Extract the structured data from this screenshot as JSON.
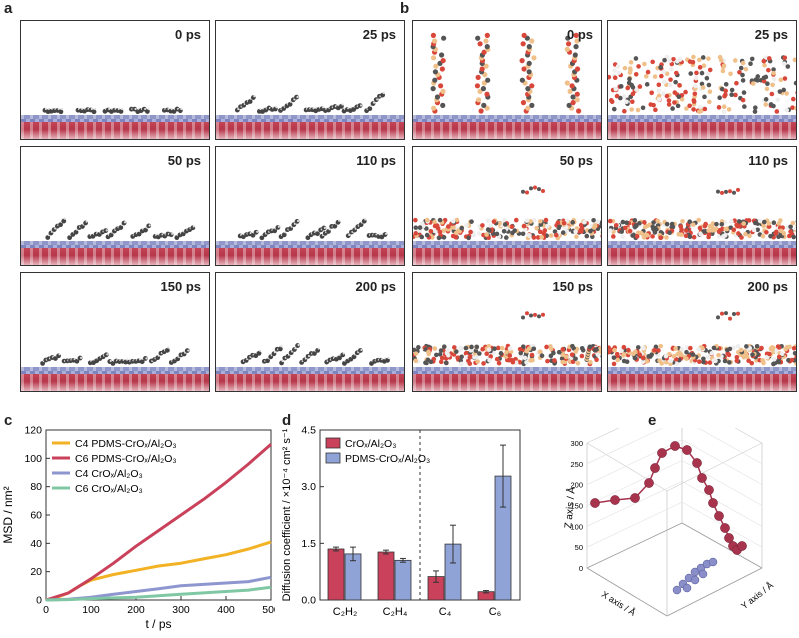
{
  "panels": {
    "a": {
      "letter": "a",
      "times": [
        "0 ps",
        "25 ps",
        "50 ps",
        "110 ps",
        "150 ps",
        "200 ps"
      ]
    },
    "b": {
      "letter": "b",
      "times": [
        "0 ps",
        "25 ps",
        "50 ps",
        "110 ps",
        "150 ps",
        "200 ps"
      ]
    },
    "c": {
      "letter": "c"
    },
    "d": {
      "letter": "d"
    },
    "e": {
      "letter": "e"
    }
  },
  "colors": {
    "c4_pdms": "#f2b224",
    "c6_pdms": "#c9415a",
    "c4_crox": "#8e96cf",
    "c6_crox": "#80c8a4",
    "bar_crox": "#c9415a",
    "bar_pdms": "#8fa3d6",
    "traj_red": "#a8334d",
    "traj_blue": "#8a8fc9"
  },
  "chart_data": [
    {
      "id": "c",
      "type": "line",
      "xlabel": "t / ps",
      "ylabel": "MSD / nm²",
      "xlim": [
        0,
        500
      ],
      "ylim": [
        0,
        120
      ],
      "xticks": [
        0,
        100,
        200,
        300,
        400,
        500
      ],
      "yticks": [
        0,
        20,
        40,
        60,
        80,
        100,
        120
      ],
      "legend_placement": "top-left",
      "series": [
        {
          "name": "C4 PDMS-CrOₓ/Al₂O₃",
          "color_key": "c4_pdms",
          "x": [
            0,
            25,
            50,
            75,
            100,
            125,
            150,
            200,
            250,
            300,
            350,
            400,
            450,
            500
          ],
          "y": [
            0,
            2,
            5,
            10,
            14,
            16,
            18,
            21,
            24,
            26,
            29,
            32,
            36,
            41
          ]
        },
        {
          "name": "C6 PDMS-CrOₓ/Al₂O₃",
          "color_key": "c6_pdms",
          "x": [
            0,
            50,
            100,
            150,
            200,
            250,
            300,
            350,
            400,
            450,
            500
          ],
          "y": [
            0,
            5,
            15,
            26,
            38,
            49,
            60,
            71,
            83,
            96,
            110
          ]
        },
        {
          "name": "C4 CrOₓ/Al₂O₃",
          "color_key": "c4_crox",
          "x": [
            0,
            50,
            100,
            150,
            200,
            250,
            300,
            350,
            400,
            450,
            500
          ],
          "y": [
            0,
            0.5,
            2,
            4,
            6,
            8,
            10,
            11,
            12,
            13,
            16
          ]
        },
        {
          "name": "C6 CrOₓ/Al₂O₃",
          "color_key": "c6_crox",
          "x": [
            0,
            50,
            100,
            150,
            200,
            250,
            300,
            350,
            400,
            450,
            500
          ],
          "y": [
            0,
            0.3,
            1,
            1.5,
            2,
            3,
            4,
            5,
            6,
            7,
            9
          ]
        }
      ]
    },
    {
      "id": "d",
      "type": "bar",
      "ylabel": "Diffusion coefficient / ×10⁻⁴ cm² s⁻¹",
      "ylim": [
        0,
        4.5
      ],
      "yticks": [
        "0.0",
        "1.5",
        "3.0",
        "4.5"
      ],
      "categories": [
        "C₂H₂",
        "C₂H₄",
        "C₄",
        "C₆"
      ],
      "legend_placement": "top-left",
      "divider_after_category": 1,
      "series": [
        {
          "name": "CrOₓ/Al₂O₃",
          "color_key": "bar_crox",
          "values": [
            1.35,
            1.27,
            0.62,
            0.22
          ],
          "errors": [
            0.05,
            0.05,
            0.15,
            0.03
          ]
        },
        {
          "name": "PDMS-CrOₓ/Al₂O₃",
          "color_key": "bar_pdms",
          "values": [
            1.22,
            1.05,
            1.48,
            3.28
          ],
          "errors": [
            0.18,
            0.05,
            0.5,
            0.82
          ]
        }
      ]
    },
    {
      "id": "e",
      "type": "scatter",
      "xlabel": "X axis / Å",
      "ylabel": "Y axis / Å",
      "zlabel": "Z axis / Å",
      "zticks": [
        0,
        50,
        100,
        150,
        200,
        250,
        300
      ]
    }
  ]
}
